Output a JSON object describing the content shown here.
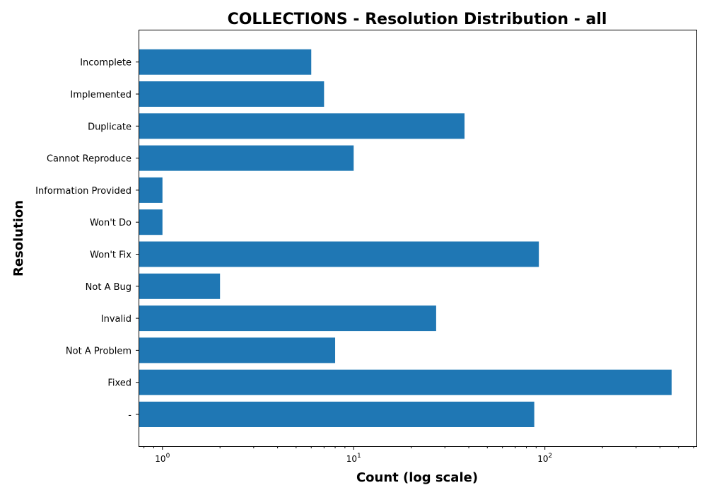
{
  "chart_data": {
    "type": "bar",
    "orientation": "horizontal",
    "title": "COLLECTIONS - Resolution Distribution - all",
    "xlabel": "Count (log scale)",
    "ylabel": "Resolution",
    "x_scale": "log",
    "xlim": [
      0.75,
      620
    ],
    "x_major_ticks": [
      {
        "value": 1,
        "base": "10",
        "exp": "0"
      },
      {
        "value": 10,
        "base": "10",
        "exp": "1"
      },
      {
        "value": 100,
        "base": "10",
        "exp": "2"
      }
    ],
    "categories": [
      "-",
      "Fixed",
      "Not A Problem",
      "Invalid",
      "Not A Bug",
      "Won't Fix",
      "Won't Do",
      "Information Provided",
      "Cannot Reproduce",
      "Duplicate",
      "Implemented",
      "Incomplete"
    ],
    "values": [
      88,
      460,
      8,
      27,
      2,
      93,
      1,
      1,
      10,
      38,
      7,
      6
    ],
    "bar_color": "#1f77b4",
    "grid": false
  }
}
